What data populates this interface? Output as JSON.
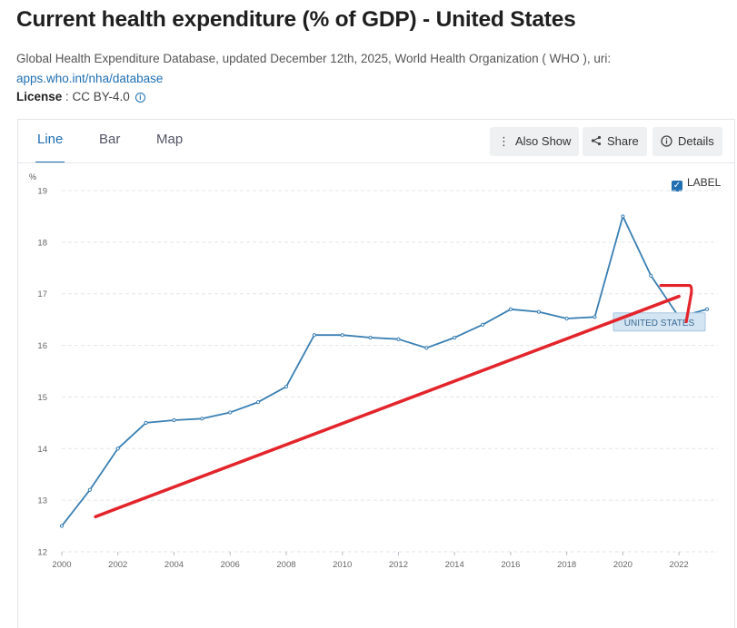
{
  "header": {
    "title": "Current health expenditure (% of GDP) - United States",
    "source_text": "Global Health Expenditure Database, updated December 12th, 2025, World Health Organization ( WHO ), uri:",
    "source_link": "apps.who.int/nha/database",
    "license_label": "License",
    "license_value": " : CC BY-4.0"
  },
  "tabs": [
    {
      "label": "Line",
      "active": true
    },
    {
      "label": "Bar",
      "active": false
    },
    {
      "label": "Map",
      "active": false
    }
  ],
  "toolbar": {
    "also_show": "Also Show",
    "share": "Share",
    "details": "Details"
  },
  "label_toggle": {
    "label": "LABEL",
    "checked": true
  },
  "colors": {
    "accent": "#1f6fb2",
    "line": "#3a7fb3",
    "annotation": "#e3242b",
    "label_bg": "#d3e4f2"
  },
  "chart_data": {
    "type": "line",
    "ylabel": "%",
    "ylim": [
      12,
      19
    ],
    "yticks": [
      "12",
      "13",
      "14",
      "15",
      "16",
      "17",
      "18",
      "19"
    ],
    "xlim": [
      2000,
      2023
    ],
    "xticks": [
      "2000",
      "2002",
      "2004",
      "2006",
      "2008",
      "2010",
      "2012",
      "2014",
      "2016",
      "2018",
      "2020",
      "2022"
    ],
    "grid": "horizontal dashed",
    "series": [
      {
        "name": "UNITED STATES",
        "x": [
          2000,
          2001,
          2002,
          2003,
          2004,
          2005,
          2006,
          2007,
          2008,
          2009,
          2010,
          2011,
          2012,
          2013,
          2014,
          2015,
          2016,
          2017,
          2018,
          2019,
          2020,
          2021,
          2022,
          2023
        ],
        "values": [
          12.5,
          13.2,
          14.0,
          14.5,
          14.55,
          14.58,
          14.7,
          14.9,
          15.2,
          16.2,
          16.2,
          16.15,
          16.12,
          15.95,
          16.15,
          16.4,
          16.7,
          16.65,
          16.52,
          16.55,
          18.5,
          17.35,
          16.55,
          16.7
        ]
      }
    ],
    "annotation": {
      "type": "hand-drawn trend line with arrow",
      "color": "#e3242b",
      "from": {
        "x": 2001.2,
        "y": 12.68
      },
      "to": {
        "x": 2022.0,
        "y": 16.95
      }
    }
  }
}
